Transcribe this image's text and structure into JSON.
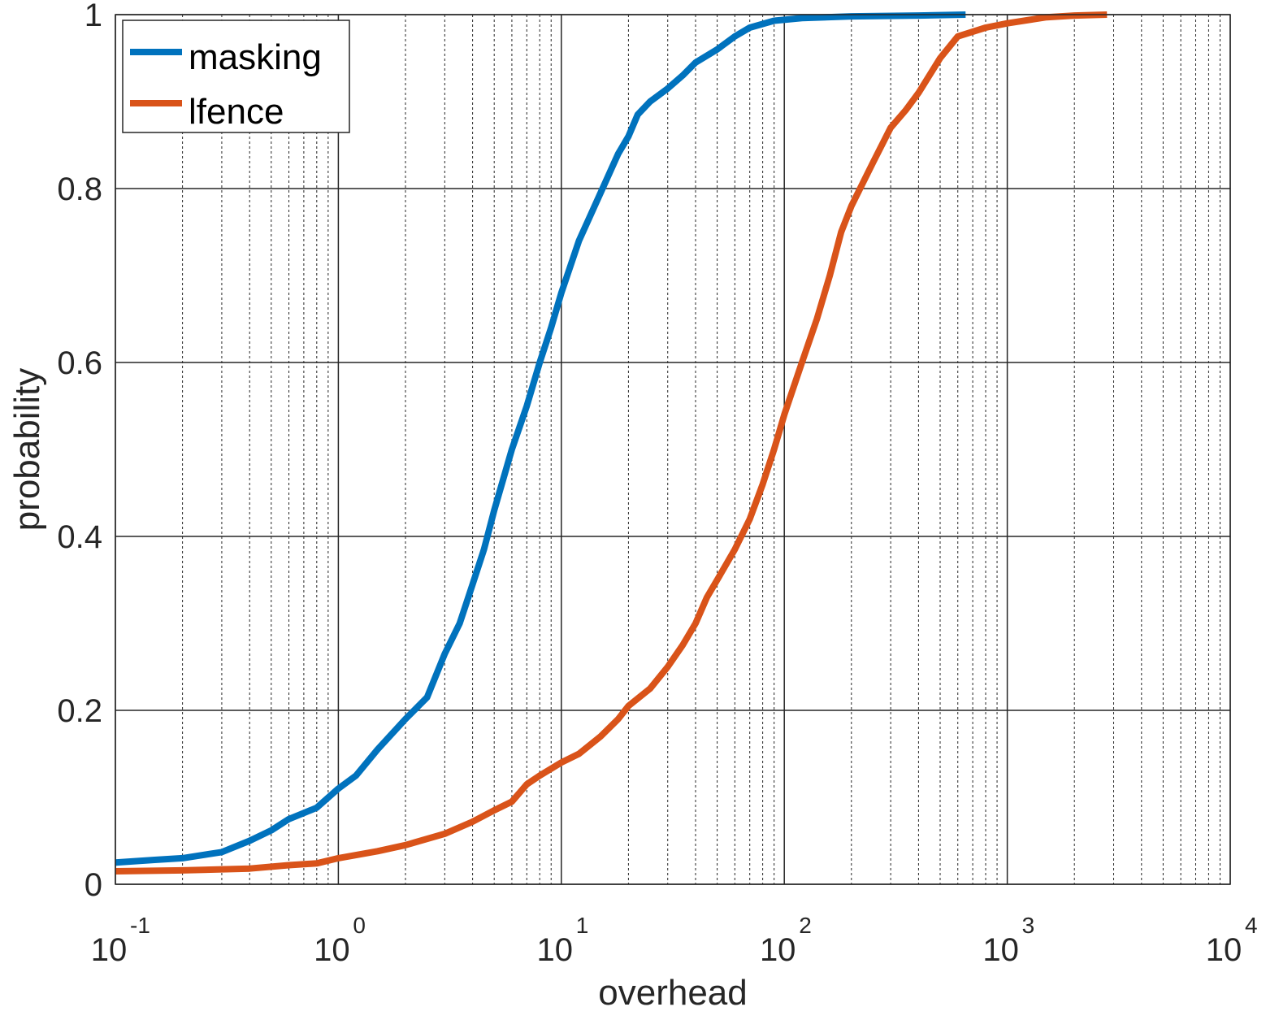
{
  "chart_data": {
    "type": "line",
    "xscale": "log",
    "xlim": [
      0.1,
      10000
    ],
    "ylim": [
      0,
      1
    ],
    "xlabel": "overhead",
    "ylabel": "probability",
    "grid": "major-solid-minor-dotted",
    "legend_position": "top-left",
    "x_ticks": [
      {
        "base": "10",
        "exp": "-1",
        "value": 0.1
      },
      {
        "base": "10",
        "exp": "0",
        "value": 1
      },
      {
        "base": "10",
        "exp": "1",
        "value": 10
      },
      {
        "base": "10",
        "exp": "2",
        "value": 100
      },
      {
        "base": "10",
        "exp": "3",
        "value": 1000
      },
      {
        "base": "10",
        "exp": "4",
        "value": 10000
      }
    ],
    "y_ticks": [
      {
        "label": "0",
        "value": 0
      },
      {
        "label": "0.2",
        "value": 0.2
      },
      {
        "label": "0.4",
        "value": 0.4
      },
      {
        "label": "0.6",
        "value": 0.6
      },
      {
        "label": "0.8",
        "value": 0.8
      },
      {
        "label": "1",
        "value": 1
      }
    ],
    "series": [
      {
        "name": "masking",
        "color": "#0072BD",
        "points": [
          [
            0.1,
            0.025
          ],
          [
            0.15,
            0.028
          ],
          [
            0.2,
            0.03
          ],
          [
            0.3,
            0.037
          ],
          [
            0.4,
            0.05
          ],
          [
            0.5,
            0.062
          ],
          [
            0.6,
            0.075
          ],
          [
            0.7,
            0.082
          ],
          [
            0.8,
            0.088
          ],
          [
            1.0,
            0.11
          ],
          [
            1.2,
            0.125
          ],
          [
            1.5,
            0.155
          ],
          [
            2.0,
            0.19
          ],
          [
            2.5,
            0.215
          ],
          [
            3.0,
            0.265
          ],
          [
            3.5,
            0.3
          ],
          [
            4.0,
            0.345
          ],
          [
            4.5,
            0.385
          ],
          [
            5.0,
            0.43
          ],
          [
            6.0,
            0.5
          ],
          [
            7.0,
            0.55
          ],
          [
            8.0,
            0.6
          ],
          [
            9.0,
            0.64
          ],
          [
            10.0,
            0.68
          ],
          [
            12.0,
            0.74
          ],
          [
            15.0,
            0.795
          ],
          [
            18.0,
            0.84
          ],
          [
            20.0,
            0.86
          ],
          [
            22.0,
            0.885
          ],
          [
            25.0,
            0.9
          ],
          [
            30.0,
            0.915
          ],
          [
            35.0,
            0.93
          ],
          [
            40.0,
            0.945
          ],
          [
            50.0,
            0.96
          ],
          [
            60.0,
            0.975
          ],
          [
            70.0,
            0.985
          ],
          [
            90.0,
            0.993
          ],
          [
            120.0,
            0.996
          ],
          [
            200.0,
            0.998
          ],
          [
            400.0,
            0.999
          ],
          [
            650.0,
            1.0
          ]
        ]
      },
      {
        "name": "lfence",
        "color": "#D95319",
        "points": [
          [
            0.1,
            0.015
          ],
          [
            0.2,
            0.016
          ],
          [
            0.4,
            0.018
          ],
          [
            0.6,
            0.022
          ],
          [
            0.8,
            0.024
          ],
          [
            1.0,
            0.03
          ],
          [
            1.5,
            0.038
          ],
          [
            2.0,
            0.045
          ],
          [
            3.0,
            0.058
          ],
          [
            4.0,
            0.072
          ],
          [
            5.0,
            0.085
          ],
          [
            6.0,
            0.095
          ],
          [
            7.0,
            0.115
          ],
          [
            8.0,
            0.125
          ],
          [
            10.0,
            0.14
          ],
          [
            12.0,
            0.15
          ],
          [
            15.0,
            0.17
          ],
          [
            18.0,
            0.19
          ],
          [
            20.0,
            0.205
          ],
          [
            25.0,
            0.225
          ],
          [
            30.0,
            0.25
          ],
          [
            35.0,
            0.275
          ],
          [
            40.0,
            0.3
          ],
          [
            45.0,
            0.33
          ],
          [
            50.0,
            0.35
          ],
          [
            60.0,
            0.385
          ],
          [
            70.0,
            0.42
          ],
          [
            80.0,
            0.46
          ],
          [
            90.0,
            0.5
          ],
          [
            100.0,
            0.54
          ],
          [
            120.0,
            0.6
          ],
          [
            140.0,
            0.65
          ],
          [
            160.0,
            0.7
          ],
          [
            180.0,
            0.75
          ],
          [
            200.0,
            0.78
          ],
          [
            250.0,
            0.83
          ],
          [
            300.0,
            0.87
          ],
          [
            350.0,
            0.89
          ],
          [
            400.0,
            0.91
          ],
          [
            500.0,
            0.95
          ],
          [
            600.0,
            0.975
          ],
          [
            800.0,
            0.985
          ],
          [
            1000.0,
            0.99
          ],
          [
            1500.0,
            0.997
          ],
          [
            2000.0,
            0.999
          ],
          [
            2800.0,
            1.0
          ]
        ]
      }
    ]
  }
}
